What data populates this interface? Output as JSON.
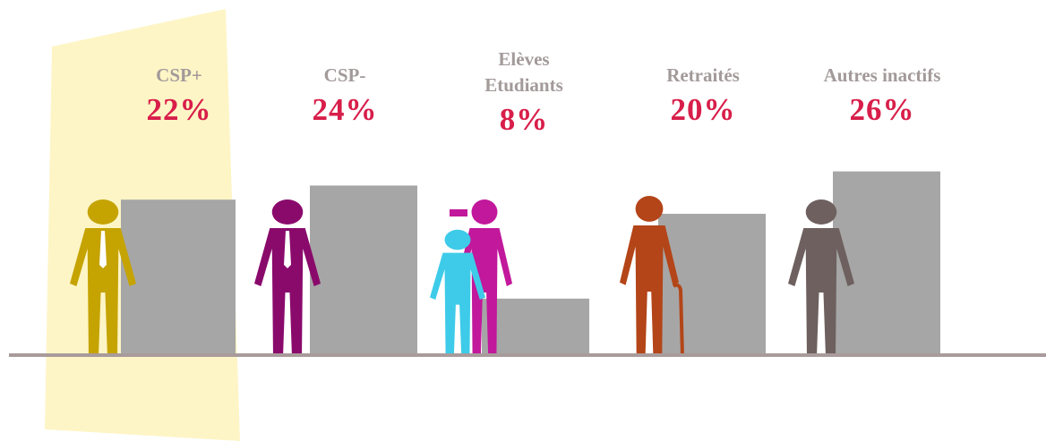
{
  "chart_data": {
    "type": "bar",
    "categories": [
      "CSP+",
      "CSP-",
      "Elèves Etudiants",
      "Retraités",
      "Autres inactifs"
    ],
    "values": [
      22,
      24,
      8,
      20,
      26
    ],
    "value_labels": [
      "22%",
      "24%",
      "8%",
      "20%",
      "26%"
    ],
    "color": "#a6a6a6"
  }
}
